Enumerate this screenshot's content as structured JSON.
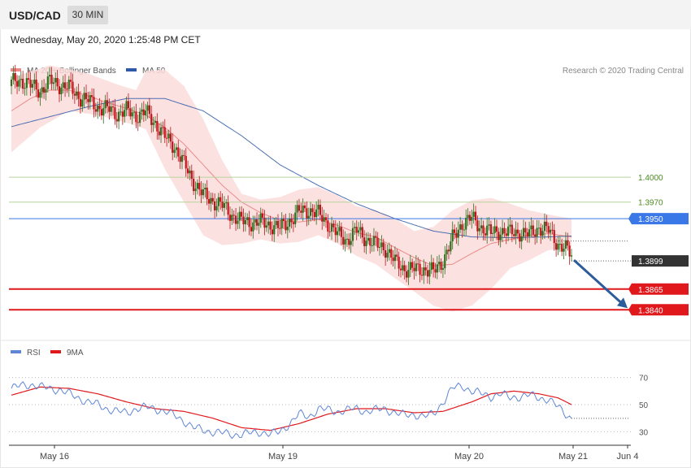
{
  "header": {
    "pair": "USD/CAD",
    "timeframe": "30 MIN",
    "datetime": "Wednesday, May 20, 2020 1:25:48 PM CET"
  },
  "legend": {
    "ma20": "MA 20 + Bollinger Bands",
    "ma50": "MA 50",
    "rsi": "RSI",
    "ma9": "9MA",
    "credit": "Research © 2020 Trading Central"
  },
  "colors": {
    "up": "#2e6e1e",
    "down": "#c0141a",
    "ma20": "#ec8a8a",
    "ma50": "#2d59a8",
    "band": "#fbdcdc",
    "resistance": "#b7d39c",
    "pivot": "#3b78e7",
    "support": "#e0181c",
    "rsi": "#5f86d6",
    "rsi_ma": "#e0181c",
    "arrow": "#2d5c9a"
  },
  "chart_data": {
    "type": "candlestick",
    "price_axis_range": [
      1.3805,
      1.4155
    ],
    "x_ticks": [
      "May 16",
      "May 19",
      "May 20",
      "May 21",
      "Jun 4"
    ],
    "levels": [
      {
        "label": "1.4000",
        "value": 1.4,
        "kind": "resistance"
      },
      {
        "label": "1.3970",
        "value": 1.397,
        "kind": "resistance"
      },
      {
        "label": "1.3950",
        "value": 1.395,
        "kind": "pivot"
      },
      {
        "label": "1.3899",
        "value": 1.3899,
        "kind": "last"
      },
      {
        "label": "1.3865",
        "value": 1.3865,
        "kind": "support"
      },
      {
        "label": "1.3840",
        "value": 1.384,
        "kind": "support"
      }
    ],
    "price_path": [
      [
        0,
        1.4113
      ],
      [
        5,
        1.4118
      ],
      [
        10,
        1.411
      ],
      [
        15,
        1.4105
      ],
      [
        20,
        1.4115
      ],
      [
        25,
        1.4112
      ],
      [
        30,
        1.4108
      ],
      [
        35,
        1.4098
      ],
      [
        40,
        1.4092
      ],
      [
        45,
        1.4085
      ],
      [
        50,
        1.4082
      ],
      [
        55,
        1.4077
      ],
      [
        60,
        1.408
      ],
      [
        65,
        1.4075
      ],
      [
        70,
        1.4078
      ],
      [
        75,
        1.4066
      ],
      [
        80,
        1.4048
      ],
      [
        85,
        1.4038
      ],
      [
        90,
        1.4015
      ],
      [
        95,
        1.3995
      ],
      [
        100,
        1.3978
      ],
      [
        105,
        1.3972
      ],
      [
        110,
        1.3965
      ],
      [
        115,
        1.3955
      ],
      [
        120,
        1.3946
      ],
      [
        125,
        1.3946
      ],
      [
        130,
        1.3945
      ],
      [
        135,
        1.3943
      ],
      [
        140,
        1.3938
      ],
      [
        145,
        1.3948
      ],
      [
        150,
        1.3958
      ],
      [
        155,
        1.3961
      ],
      [
        160,
        1.3955
      ],
      [
        165,
        1.3945
      ],
      [
        170,
        1.393
      ],
      [
        175,
        1.3925
      ],
      [
        180,
        1.3935
      ],
      [
        185,
        1.3926
      ],
      [
        190,
        1.3918
      ],
      [
        195,
        1.3915
      ],
      [
        200,
        1.3897
      ],
      [
        205,
        1.389
      ],
      [
        210,
        1.3888
      ],
      [
        215,
        1.389
      ],
      [
        220,
        1.3885
      ],
      [
        225,
        1.39
      ],
      [
        230,
        1.3925
      ],
      [
        235,
        1.3945
      ],
      [
        240,
        1.395
      ],
      [
        245,
        1.394
      ],
      [
        250,
        1.3932
      ],
      [
        255,
        1.3936
      ],
      [
        260,
        1.3932
      ],
      [
        265,
        1.3934
      ],
      [
        270,
        1.393
      ],
      [
        275,
        1.394
      ],
      [
        280,
        1.3935
      ],
      [
        285,
        1.392
      ],
      [
        290,
        1.3911
      ],
      [
        292,
        1.3905
      ]
    ],
    "ma20_path": [
      [
        0,
        1.408
      ],
      [
        10,
        1.4095
      ],
      [
        20,
        1.4105
      ],
      [
        30,
        1.4105
      ],
      [
        40,
        1.4098
      ],
      [
        50,
        1.409
      ],
      [
        60,
        1.4083
      ],
      [
        70,
        1.4075
      ],
      [
        80,
        1.406
      ],
      [
        90,
        1.404
      ],
      [
        100,
        1.4015
      ],
      [
        110,
        1.399
      ],
      [
        120,
        1.397
      ],
      [
        130,
        1.3957
      ],
      [
        140,
        1.3948
      ],
      [
        150,
        1.3946
      ],
      [
        160,
        1.3949
      ],
      [
        170,
        1.3942
      ],
      [
        180,
        1.3933
      ],
      [
        190,
        1.3928
      ],
      [
        200,
        1.3915
      ],
      [
        210,
        1.3903
      ],
      [
        220,
        1.3893
      ],
      [
        230,
        1.3895
      ],
      [
        240,
        1.3908
      ],
      [
        250,
        1.392
      ],
      [
        260,
        1.3925
      ],
      [
        270,
        1.393
      ],
      [
        280,
        1.3932
      ],
      [
        292,
        1.3928
      ]
    ],
    "ma50_path": [
      [
        0,
        1.4061
      ],
      [
        20,
        1.4073
      ],
      [
        40,
        1.4085
      ],
      [
        60,
        1.4095
      ],
      [
        80,
        1.4095
      ],
      [
        100,
        1.408
      ],
      [
        120,
        1.405
      ],
      [
        140,
        1.4015
      ],
      [
        160,
        1.399
      ],
      [
        180,
        1.3968
      ],
      [
        200,
        1.395
      ],
      [
        220,
        1.3935
      ],
      [
        240,
        1.3928
      ],
      [
        260,
        1.3927
      ],
      [
        280,
        1.3928
      ],
      [
        292,
        1.3929
      ]
    ],
    "band_upper": [
      [
        0,
        1.412
      ],
      [
        20,
        1.4135
      ],
      [
        40,
        1.4125
      ],
      [
        55,
        1.4112
      ],
      [
        65,
        1.4105
      ],
      [
        70,
        1.4128
      ],
      [
        80,
        1.413
      ],
      [
        90,
        1.411
      ],
      [
        100,
        1.407
      ],
      [
        110,
        1.402
      ],
      [
        120,
        1.398
      ],
      [
        130,
        1.3973
      ],
      [
        140,
        1.3976
      ],
      [
        150,
        1.3985
      ],
      [
        160,
        1.3988
      ],
      [
        170,
        1.3978
      ],
      [
        180,
        1.3965
      ],
      [
        190,
        1.396
      ],
      [
        200,
        1.395
      ],
      [
        210,
        1.3935
      ],
      [
        220,
        1.394
      ],
      [
        230,
        1.396
      ],
      [
        240,
        1.3972
      ],
      [
        250,
        1.3975
      ],
      [
        260,
        1.3968
      ],
      [
        270,
        1.396
      ],
      [
        280,
        1.3955
      ],
      [
        292,
        1.395
      ]
    ],
    "band_lower": [
      [
        0,
        1.403
      ],
      [
        15,
        1.406
      ],
      [
        30,
        1.408
      ],
      [
        45,
        1.4075
      ],
      [
        60,
        1.4066
      ],
      [
        70,
        1.4058
      ],
      [
        80,
        1.401
      ],
      [
        90,
        1.397
      ],
      [
        100,
        1.393
      ],
      [
        110,
        1.3918
      ],
      [
        120,
        1.392
      ],
      [
        130,
        1.3925
      ],
      [
        140,
        1.392
      ],
      [
        150,
        1.3922
      ],
      [
        160,
        1.393
      ],
      [
        170,
        1.392
      ],
      [
        180,
        1.3905
      ],
      [
        190,
        1.3895
      ],
      [
        200,
        1.3878
      ],
      [
        210,
        1.3862
      ],
      [
        220,
        1.3845
      ],
      [
        230,
        1.3838
      ],
      [
        240,
        1.3845
      ],
      [
        250,
        1.3865
      ],
      [
        260,
        1.389
      ],
      [
        270,
        1.39
      ],
      [
        280,
        1.3912
      ],
      [
        292,
        1.3915
      ]
    ],
    "projection": {
      "from": [
        292,
        1.39
      ],
      "to": [
        322,
        1.384
      ]
    },
    "rsi": {
      "range": [
        20,
        80
      ],
      "ticks": [
        70,
        50,
        30
      ],
      "series_path": [
        [
          0,
          62
        ],
        [
          5,
          64
        ],
        [
          10,
          65
        ],
        [
          15,
          63
        ],
        [
          20,
          62
        ],
        [
          25,
          61
        ],
        [
          30,
          58
        ],
        [
          35,
          55
        ],
        [
          40,
          52
        ],
        [
          45,
          50
        ],
        [
          50,
          47
        ],
        [
          55,
          45
        ],
        [
          60,
          44
        ],
        [
          65,
          47
        ],
        [
          70,
          48
        ],
        [
          75,
          47
        ],
        [
          80,
          45
        ],
        [
          85,
          42
        ],
        [
          90,
          38
        ],
        [
          95,
          33
        ],
        [
          100,
          31
        ],
        [
          105,
          30
        ],
        [
          110,
          29
        ],
        [
          115,
          28
        ],
        [
          120,
          28
        ],
        [
          125,
          29
        ],
        [
          130,
          30
        ],
        [
          135,
          28
        ],
        [
          140,
          30
        ],
        [
          145,
          36
        ],
        [
          150,
          43
        ],
        [
          155,
          41
        ],
        [
          160,
          47
        ],
        [
          165,
          46
        ],
        [
          170,
          45
        ],
        [
          175,
          46
        ],
        [
          180,
          47
        ],
        [
          185,
          45
        ],
        [
          190,
          46
        ],
        [
          195,
          47
        ],
        [
          200,
          44
        ],
        [
          205,
          42
        ],
        [
          210,
          43
        ],
        [
          215,
          41
        ],
        [
          220,
          43
        ],
        [
          225,
          52
        ],
        [
          230,
          62
        ],
        [
          235,
          64
        ],
        [
          240,
          60
        ],
        [
          245,
          58
        ],
        [
          250,
          56
        ],
        [
          255,
          58
        ],
        [
          260,
          55
        ],
        [
          265,
          56
        ],
        [
          270,
          57
        ],
        [
          275,
          55
        ],
        [
          280,
          54
        ],
        [
          285,
          48
        ],
        [
          290,
          42
        ],
        [
          292,
          40
        ]
      ],
      "ma_path": [
        [
          0,
          57
        ],
        [
          15,
          63
        ],
        [
          30,
          62
        ],
        [
          45,
          58
        ],
        [
          60,
          52
        ],
        [
          75,
          47
        ],
        [
          90,
          45
        ],
        [
          105,
          40
        ],
        [
          120,
          33
        ],
        [
          135,
          31
        ],
        [
          150,
          36
        ],
        [
          165,
          43
        ],
        [
          180,
          47
        ],
        [
          195,
          47
        ],
        [
          210,
          44
        ],
        [
          225,
          45
        ],
        [
          240,
          52
        ],
        [
          250,
          58
        ],
        [
          262,
          60
        ],
        [
          275,
          58
        ],
        [
          285,
          55
        ],
        [
          292,
          50
        ]
      ]
    }
  }
}
